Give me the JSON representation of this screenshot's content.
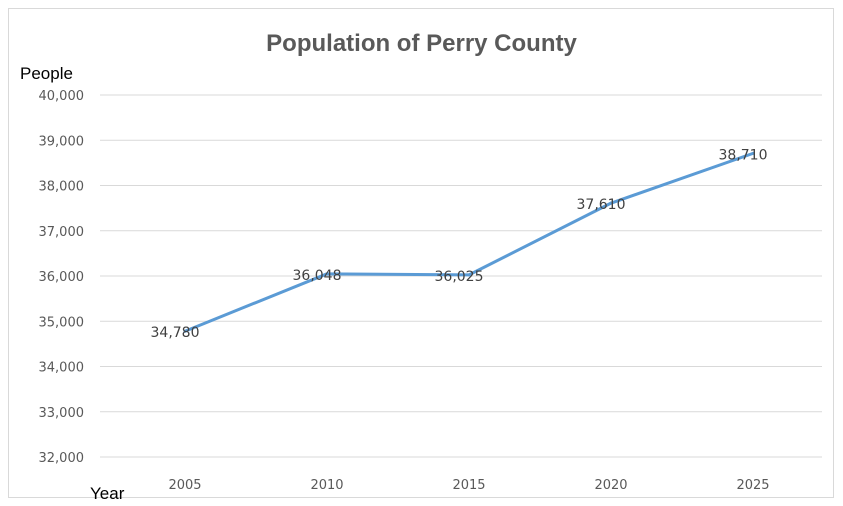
{
  "chart_data": {
    "type": "line",
    "title": "Population of Perry County",
    "xlabel": "Year",
    "ylabel": "People",
    "categories": [
      "2005",
      "2010",
      "2015",
      "2020",
      "2025"
    ],
    "series": [
      {
        "values": [
          34780,
          36048,
          36025,
          37610,
          38710
        ],
        "data_labels": [
          "34,780",
          "36,048",
          "36,025",
          "37,610",
          "38,710"
        ],
        "color": "#5b9bd5"
      }
    ],
    "ylim": [
      32000,
      40000
    ],
    "yticks": [
      32000,
      33000,
      34000,
      35000,
      36000,
      37000,
      38000,
      39000,
      40000
    ],
    "ytick_labels": [
      "32,000",
      "33,000",
      "34,000",
      "35,000",
      "36,000",
      "37,000",
      "38,000",
      "39,000",
      "40,000"
    ],
    "grid": true,
    "gridline_color": "#d9d9d9",
    "legend": "none"
  }
}
